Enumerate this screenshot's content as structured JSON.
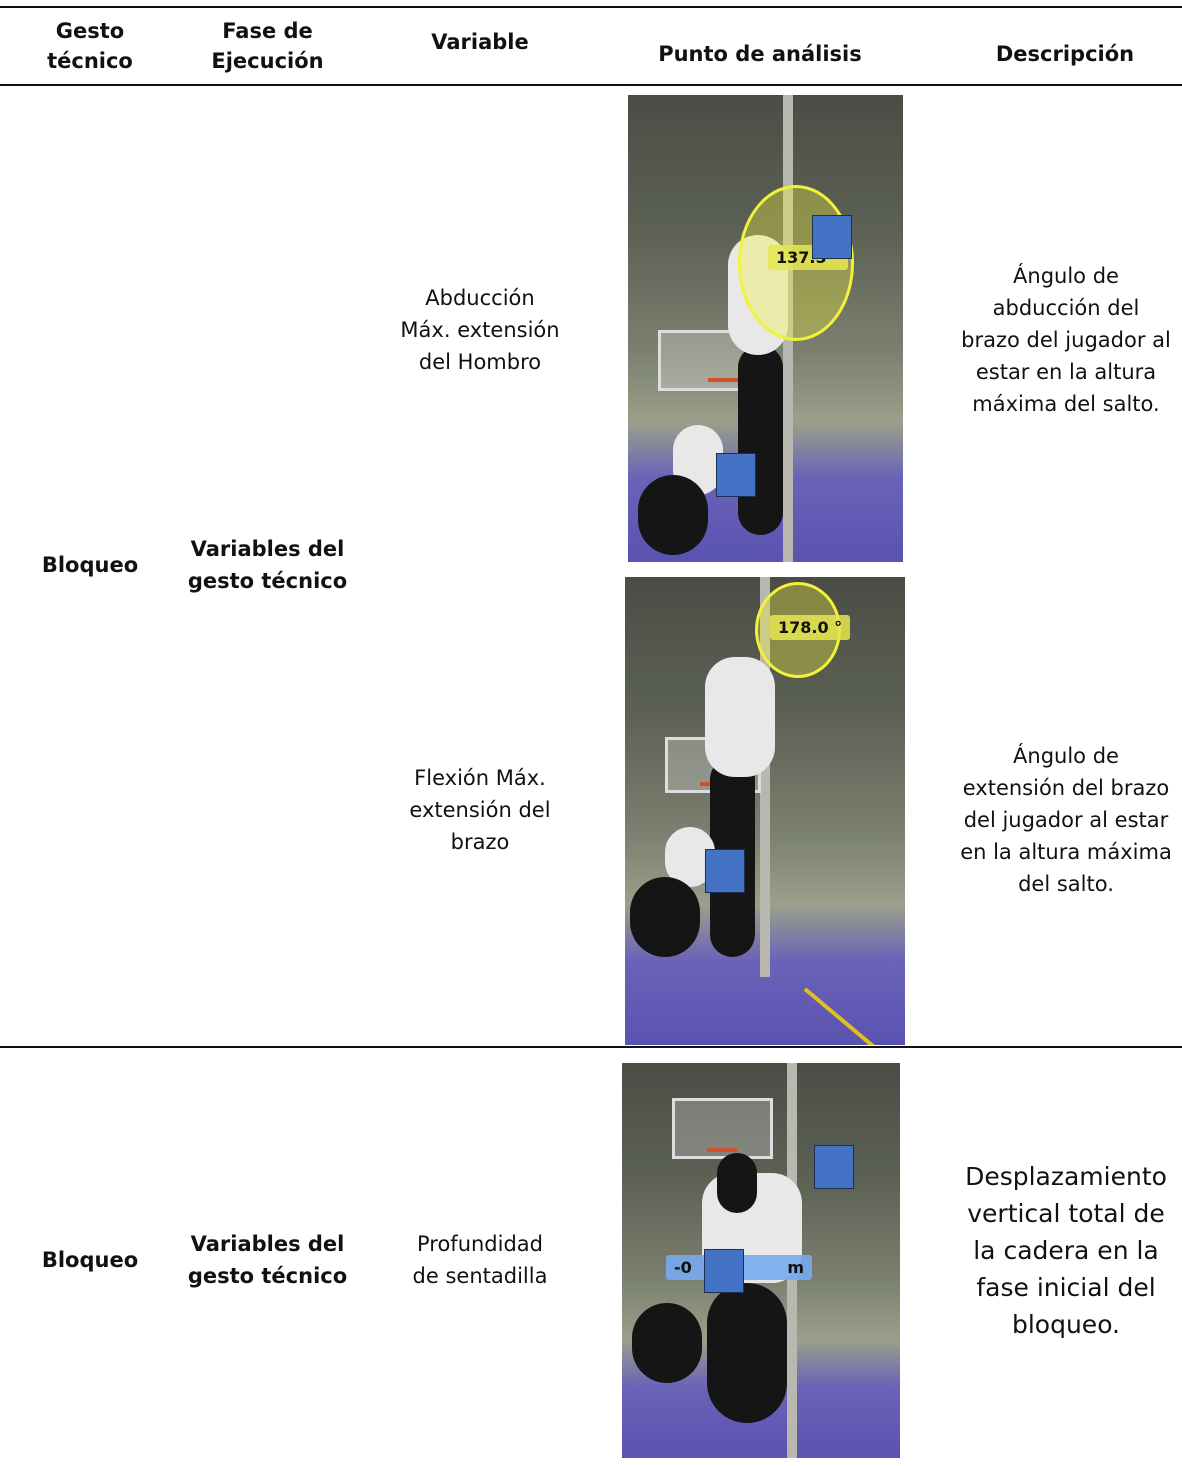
{
  "table": {
    "header": [
      "Gesto técnico",
      "Fase de Ejecución",
      "Variable",
      "Punto de análisis",
      "Descripción"
    ],
    "rows": [
      {
        "gesto": "Bloqueo",
        "fase": "Variables del gesto técnico",
        "items": [
          {
            "variable": "Abducción Máx. extensión del Hombro",
            "image_label": "137.5 °",
            "descripcion": "Ángulo de abducción del brazo del jugador al estar en la altura máxima del salto."
          },
          {
            "variable": "Flexión Máx. extensión del brazo",
            "image_label": "178.0 °",
            "descripcion": "Ángulo de extensión del brazo del jugador al estar en la altura máxima del salto."
          }
        ]
      },
      {
        "gesto": "Bloqueo",
        "fase": "Variables del gesto técnico",
        "items": [
          {
            "variable": "Profundidad de sentadilla",
            "image_label": "-0",
            "image_unit": "m",
            "descripcion": "Desplazamiento vertical total de la cadera en la fase inicial del bloqueo."
          }
        ]
      }
    ]
  }
}
